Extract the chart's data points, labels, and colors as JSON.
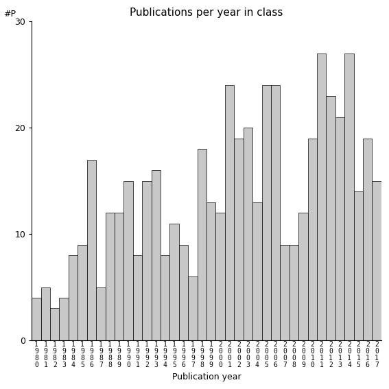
{
  "title": "Publications per year in class",
  "xlabel": "Publication year",
  "ylabel": "#P",
  "ylim": [
    0,
    30
  ],
  "yticks": [
    0,
    10,
    20,
    30
  ],
  "bar_color": "#c8c8c8",
  "bar_edge_color": "#000000",
  "bar_edge_width": 0.5,
  "years": [
    1980,
    1981,
    1982,
    1983,
    1984,
    1985,
    1986,
    1987,
    1988,
    1989,
    1990,
    1991,
    1992,
    1993,
    1994,
    1995,
    1996,
    1997,
    1998,
    1999,
    2000,
    2001,
    2002,
    2003,
    2004,
    2005,
    2006,
    2007,
    2008,
    2009,
    2010,
    2011,
    2012,
    2013,
    2014,
    2015,
    2016,
    2017
  ],
  "values": [
    4,
    5,
    3,
    4,
    8,
    9,
    17,
    5,
    12,
    12,
    15,
    8,
    15,
    16,
    8,
    11,
    9,
    6,
    18,
    13,
    12,
    24,
    19,
    20,
    13,
    24,
    24,
    9,
    9,
    12,
    19,
    27,
    23,
    21,
    27,
    14,
    19,
    15
  ]
}
